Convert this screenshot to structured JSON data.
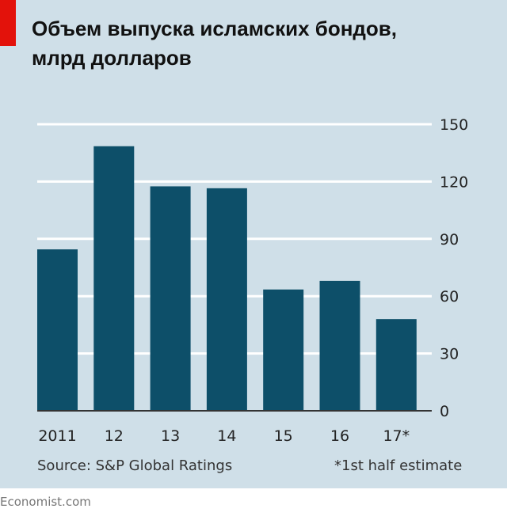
{
  "chart_data": {
    "type": "bar",
    "title": "Объем выпуска исламских бондов, млрд долларов",
    "title_lines": [
      "Объем выпуска исламских бондов,",
      "млрд долларов"
    ],
    "categories": [
      "2011",
      "12",
      "13",
      "14",
      "15",
      "16",
      "17*"
    ],
    "values": [
      84.5,
      138.5,
      117.5,
      116.5,
      63.5,
      68,
      48
    ],
    "yticks": [
      "0",
      "30",
      "60",
      "90",
      "120",
      "150"
    ],
    "ylim": [
      0,
      150
    ],
    "xlabel": "",
    "ylabel": "",
    "grid": true,
    "bar_color": "#0d4f69",
    "source": "Source: S&P Global Ratings",
    "note": "*1st half estimate",
    "logo": "Economist.com"
  }
}
